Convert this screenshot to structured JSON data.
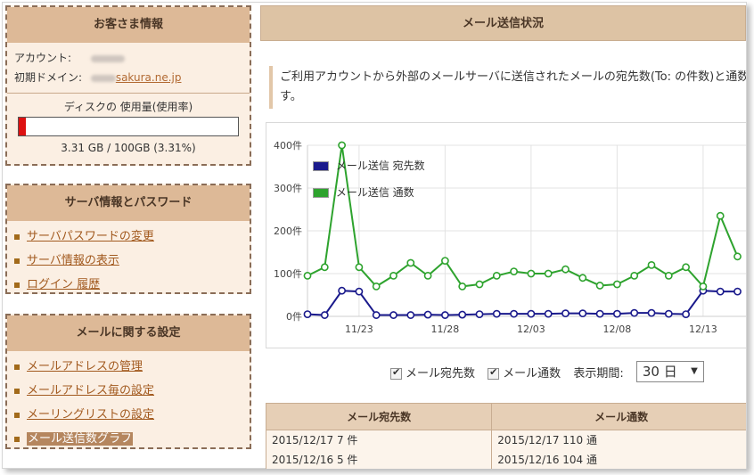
{
  "customer": {
    "title": "お客さま情報",
    "account_label": "アカウント:",
    "domain_label": "初期ドメイン:",
    "domain_value": "sakura.ne.jp",
    "disk_title": "ディスクの 使用量(使用率)",
    "disk_usage_fraction": 0.0331,
    "disk_text": "3.31 GB / 100GB (3.31%)"
  },
  "server": {
    "title": "サーバ情報とパスワード",
    "items": [
      {
        "label": "サーバパスワードの変更"
      },
      {
        "label": "サーバ情報の表示"
      },
      {
        "label": "ログイン 履歴"
      }
    ]
  },
  "mail_settings": {
    "title": "メールに関する設定",
    "items": [
      {
        "label": "メールアドレスの管理"
      },
      {
        "label": "メールアドレス毎の設定"
      },
      {
        "label": "メーリングリストの設定"
      },
      {
        "label": "メール送信数グラフ",
        "active": true
      }
    ]
  },
  "main": {
    "title": "メール送信状況",
    "description": "ご利用アカウントから外部のメールサーバに送信されたメールの宛先数(To: の件数)と通数",
    "description_line2": "す。"
  },
  "controls": {
    "recipients_label": "メール宛先数",
    "count_label": "メール通数",
    "period_label": "表示期間:",
    "period_value": "30 日",
    "dropdown_arrow": "▼"
  },
  "table": {
    "headers": [
      "メール宛先数",
      "メール通数"
    ],
    "rows": [
      [
        "2015/12/17 7 件",
        "2015/12/17 110 通"
      ],
      [
        "2015/12/16 5 件",
        "2015/12/16 104 通"
      ]
    ]
  },
  "colors": {
    "recipients_series": "#1a1a8c",
    "count_series": "#2ea32e",
    "panel_head": "#ddb997",
    "panel_bg": "#fbefe3"
  },
  "chart_data": {
    "type": "line",
    "y_ticks": [
      "0件",
      "100件",
      "200件",
      "300件",
      "400件"
    ],
    "ylim": [
      0,
      400
    ],
    "x_ticks": [
      "11/23",
      "11/28",
      "12/03",
      "12/08",
      "12/13"
    ],
    "x_tick_index": [
      3,
      8,
      13,
      18,
      23
    ],
    "grid": true,
    "legend_position": "top-left",
    "series": [
      {
        "name": "メール送信 宛先数",
        "values": [
          5,
          3,
          60,
          58,
          3,
          3,
          3,
          4,
          3,
          4,
          5,
          6,
          6,
          6,
          6,
          7,
          7,
          6,
          6,
          8,
          8,
          6,
          5,
          60,
          58,
          58
        ]
      },
      {
        "name": "メール送信 通数",
        "values": [
          95,
          115,
          410,
          115,
          70,
          95,
          125,
          95,
          130,
          70,
          75,
          95,
          105,
          100,
          100,
          110,
          90,
          72,
          75,
          95,
          120,
          95,
          115,
          70,
          235,
          140
        ]
      }
    ]
  }
}
